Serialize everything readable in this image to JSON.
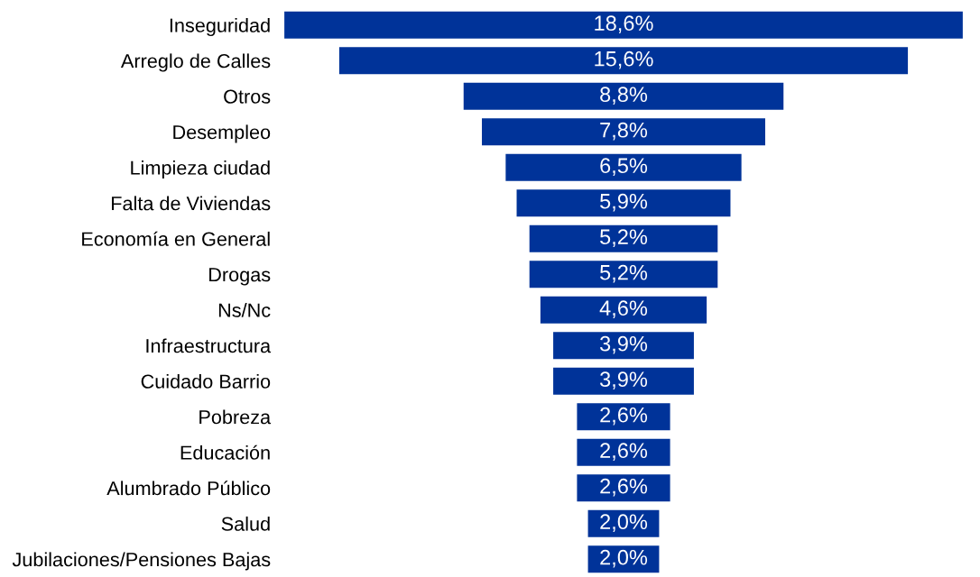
{
  "chart_data": {
    "type": "other",
    "categories": [
      "Inseguridad",
      "Arreglo de Calles",
      "Otros",
      "Desempleo",
      "Limpieza ciudad",
      "Falta de Viviendas",
      "Economía en General",
      "Drogas",
      "Ns/Nc",
      "Infraestructura",
      "Cuidado Barrio",
      "Pobreza",
      "Educación",
      "Alumbrado Público",
      "Salud",
      "Jubilaciones/Pensiones Bajas"
    ],
    "values": [
      18.6,
      15.6,
      8.8,
      7.8,
      6.5,
      5.9,
      5.2,
      5.2,
      4.6,
      3.9,
      3.9,
      2.6,
      2.6,
      2.6,
      2.0,
      2.0
    ],
    "value_labels": [
      "18,6%",
      "15,6%",
      "8,8%",
      "7,8%",
      "6,5%",
      "5,9%",
      "5,2%",
      "5,2%",
      "4,6%",
      "3,9%",
      "3,9%",
      "2,6%",
      "2,6%",
      "2,6%",
      "2,0%",
      "2,0%"
    ],
    "color": "#003399"
  }
}
